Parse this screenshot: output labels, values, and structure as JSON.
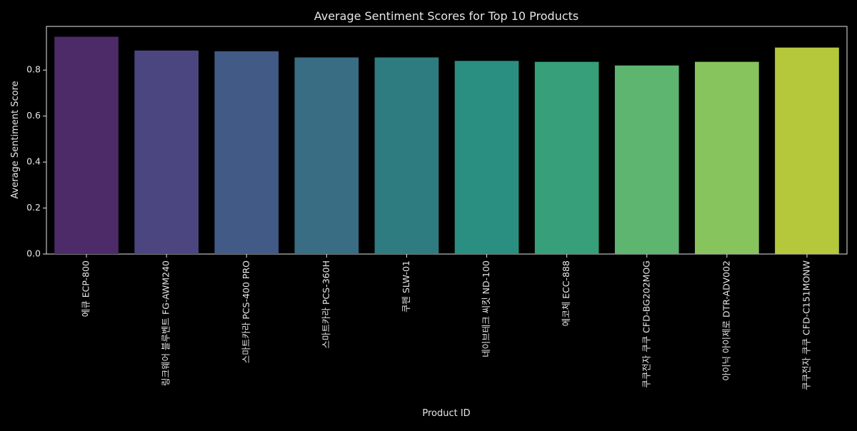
{
  "chart_data": {
    "type": "bar",
    "title": "Average Sentiment Scores for Top 10 Products",
    "xlabel": "Product ID",
    "ylabel": "Average Sentiment Score",
    "categories": [
      "에큐 ECP-800",
      "링크웨어 블루벤트 FG-AWM240",
      "스마트카라 PCS-400 PRO",
      "스마트카라 PCS-360H",
      "쿠펜 SLW-01",
      "네이브테크 씨킷 ND-100",
      "에코체 ECC-888",
      "쿠쿠전자 쿠쿠 CFD-BG202MOG",
      "아이닉 아이제로 DTR-ADV002",
      "쿠쿠전자 쿠쿠 CFD-C151MONW"
    ],
    "values": [
      0.945,
      0.885,
      0.882,
      0.855,
      0.855,
      0.84,
      0.836,
      0.82,
      0.836,
      0.898
    ],
    "ylim": [
      0,
      0.99
    ],
    "yticks": [
      0.0,
      0.2,
      0.4,
      0.6,
      0.8
    ],
    "ytick_labels": [
      "0.0",
      "0.2",
      "0.4",
      "0.6",
      "0.8"
    ],
    "colors": [
      "#4c2b68",
      "#4b4680",
      "#425a86",
      "#386d84",
      "#2f7c80",
      "#2a8f80",
      "#37a07a",
      "#5db570",
      "#88c45e",
      "#b5c73a"
    ],
    "background": "#000000",
    "axis_color": "#e6e6e6",
    "grid": false,
    "legend": "none"
  }
}
